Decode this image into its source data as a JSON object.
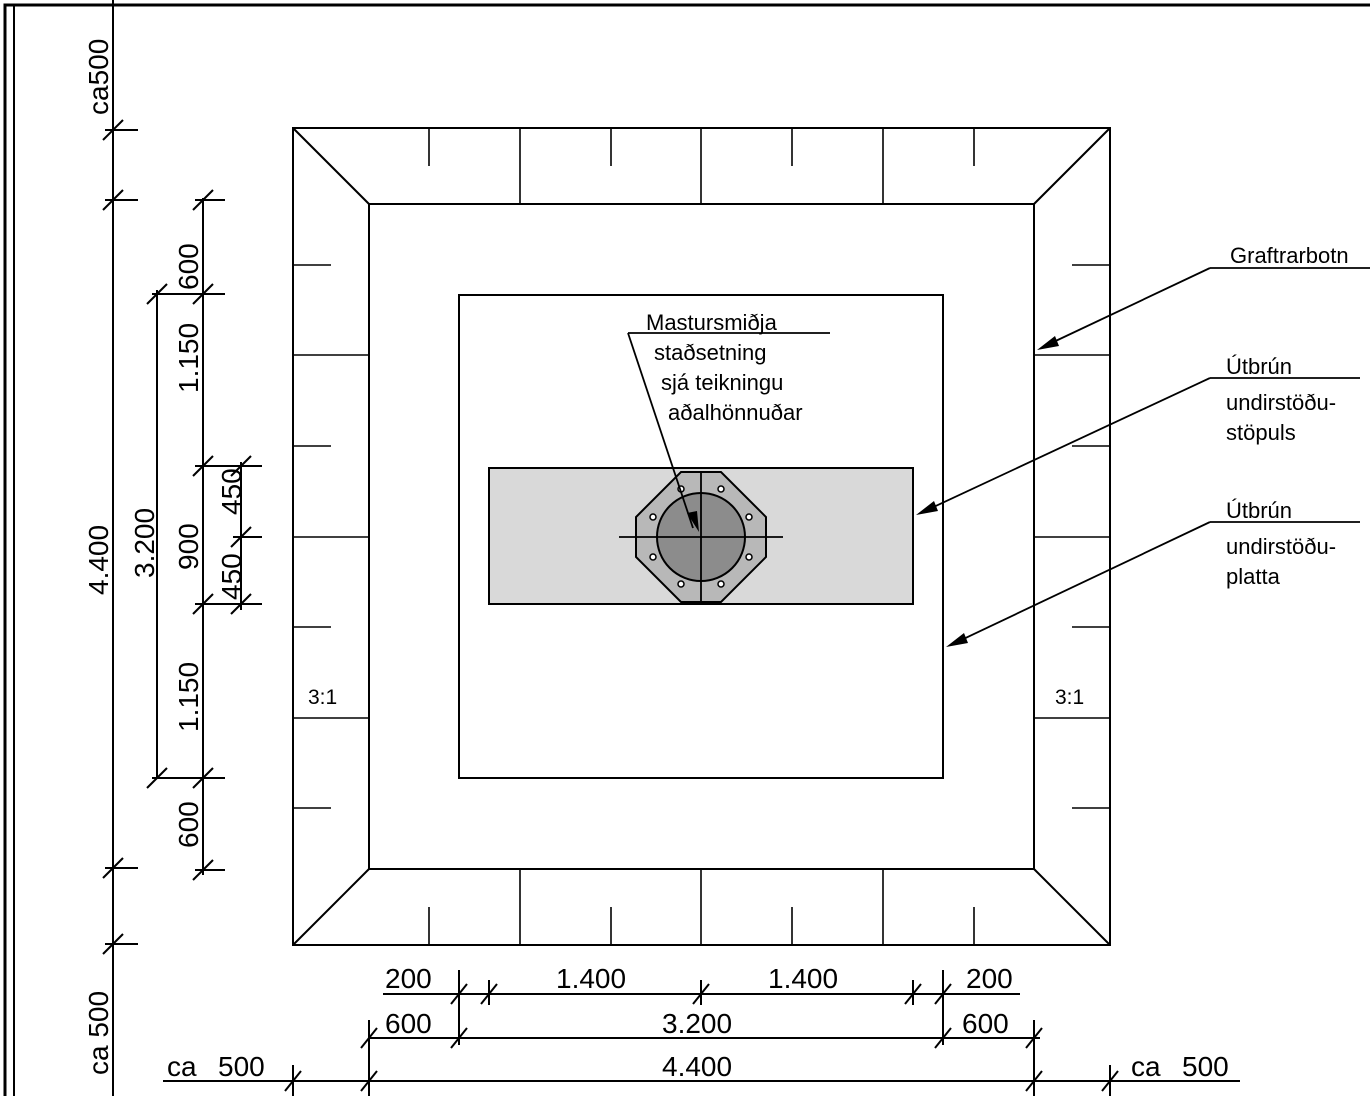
{
  "colors": {
    "line": "#000000",
    "background": "#ffffff",
    "plinth_fill": "#d9d9d9",
    "base_plate_fill": "#b8b8b8",
    "mast_fill": "#8c8c8c"
  },
  "labels": {
    "mast_center": [
      "Mastursmiðja",
      "staðsetning",
      "sjá teikningu",
      "aðalhönnuðar"
    ],
    "excavation_bottom": "Graftrarbotn",
    "plinth_edge": [
      "Útbrún",
      "undirstöðu-",
      "stöpuls"
    ],
    "slab_edge": [
      "Útbrún",
      "undirstöðu-",
      "platta"
    ],
    "slope_left": "3:1",
    "slope_right": "3:1"
  },
  "dimensions": {
    "vertical_outer": [
      "ca500",
      "4.400",
      "ca 500"
    ],
    "vertical_mid": "3.200",
    "vertical_inner": [
      "600",
      "1.150",
      "900",
      "1.150",
      "600"
    ],
    "vertical_plinth": [
      "450",
      "450"
    ],
    "horizontal_row1": [
      "200",
      "1.400",
      "1.400",
      "200"
    ],
    "horizontal_row2": [
      "600",
      "3.200",
      "600"
    ],
    "horizontal_row3": [
      "ca",
      "500",
      "4.400",
      "ca",
      "500"
    ]
  }
}
